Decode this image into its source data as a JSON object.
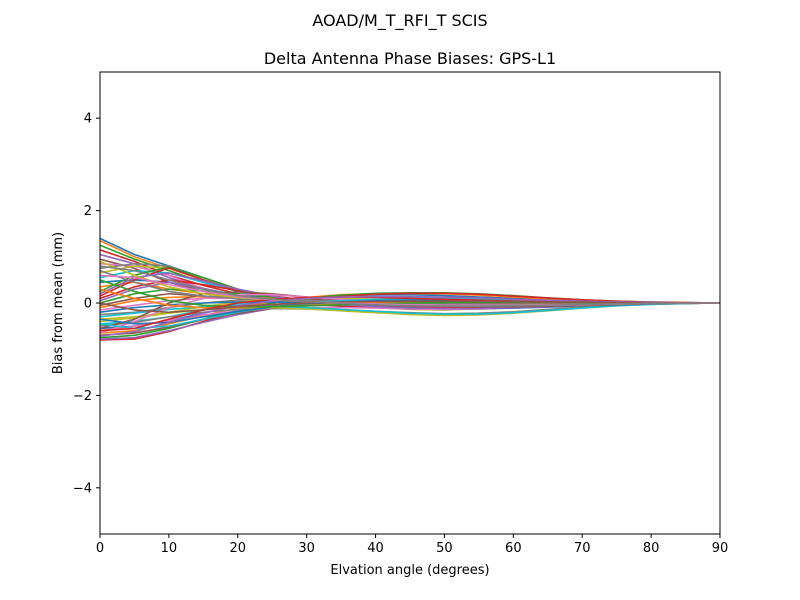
{
  "figure": {
    "suptitle": "AOAD/M_T_RFI_T  SCIS"
  },
  "chart_data": {
    "type": "line",
    "title": "Delta Antenna Phase Biases: GPS-L1",
    "xlabel": "Elvation angle (degrees)",
    "ylabel": "Bias from mean (mm)",
    "xlim": [
      0,
      90
    ],
    "ylim": [
      -5,
      5
    ],
    "xticks": [
      0,
      10,
      20,
      30,
      40,
      50,
      60,
      70,
      80,
      90
    ],
    "yticks": [
      -4,
      -2,
      0,
      2,
      4
    ],
    "xtick_labels": [
      "0",
      "10",
      "20",
      "30",
      "40",
      "50",
      "60",
      "70",
      "80",
      "90"
    ],
    "ytick_labels": [
      "−4",
      "−2",
      "0",
      "2",
      "4"
    ],
    "grid": false,
    "legend": "none",
    "palette": [
      "#1f77b4",
      "#ff7f0e",
      "#2ca02c",
      "#d62728",
      "#9467bd",
      "#8c564b",
      "#e377c2",
      "#7f7f7f",
      "#bcbd22",
      "#17becf"
    ],
    "x": [
      0,
      5,
      10,
      15,
      20,
      25,
      30,
      35,
      40,
      45,
      50,
      55,
      60,
      65,
      70,
      75,
      80,
      85,
      90
    ],
    "series": [
      {
        "values": [
          1.4,
          1.05,
          0.8,
          0.55,
          0.3,
          0.15,
          0.05,
          0.0,
          -0.05,
          -0.08,
          -0.08,
          -0.07,
          -0.05,
          -0.04,
          -0.03,
          -0.02,
          -0.01,
          0.0,
          0.0
        ]
      },
      {
        "values": [
          1.35,
          1.0,
          0.75,
          0.5,
          0.28,
          0.12,
          0.04,
          -0.02,
          -0.06,
          -0.09,
          -0.1,
          -0.08,
          -0.06,
          -0.04,
          -0.03,
          -0.02,
          -0.01,
          -0.01,
          0.0
        ]
      },
      {
        "values": [
          1.25,
          0.95,
          0.7,
          0.45,
          0.25,
          0.1,
          0.02,
          -0.04,
          -0.08,
          -0.1,
          -0.1,
          -0.09,
          -0.07,
          -0.05,
          -0.03,
          -0.02,
          -0.01,
          0.0,
          0.0
        ]
      },
      {
        "values": [
          1.15,
          0.9,
          0.6,
          0.38,
          0.2,
          0.08,
          0.0,
          -0.05,
          -0.08,
          -0.1,
          -0.1,
          -0.08,
          -0.06,
          -0.04,
          -0.02,
          -0.01,
          0.0,
          0.0,
          0.0
        ]
      },
      {
        "values": [
          1.05,
          0.85,
          0.55,
          0.32,
          0.16,
          0.05,
          -0.02,
          -0.06,
          -0.09,
          -0.11,
          -0.11,
          -0.09,
          -0.07,
          -0.05,
          -0.03,
          -0.02,
          -0.01,
          0.0,
          0.0
        ]
      },
      {
        "values": [
          0.95,
          0.75,
          0.45,
          0.25,
          0.12,
          0.03,
          -0.03,
          -0.07,
          -0.1,
          -0.12,
          -0.12,
          -0.1,
          -0.08,
          -0.06,
          -0.04,
          -0.02,
          -0.01,
          0.0,
          0.0
        ]
      },
      {
        "values": [
          0.85,
          0.8,
          0.6,
          0.3,
          0.1,
          0.02,
          -0.02,
          -0.05,
          -0.07,
          -0.08,
          -0.08,
          -0.07,
          -0.05,
          -0.04,
          -0.02,
          -0.01,
          0.0,
          0.0,
          0.0
        ]
      },
      {
        "values": [
          0.75,
          0.85,
          0.8,
          0.5,
          0.25,
          0.1,
          0.0,
          -0.06,
          -0.1,
          -0.13,
          -0.14,
          -0.12,
          -0.09,
          -0.06,
          -0.04,
          -0.02,
          -0.01,
          0.0,
          0.0
        ]
      },
      {
        "values": [
          0.65,
          0.8,
          0.75,
          0.55,
          0.3,
          0.12,
          0.02,
          -0.05,
          -0.1,
          -0.14,
          -0.15,
          -0.13,
          -0.1,
          -0.07,
          -0.04,
          -0.02,
          -0.01,
          0.0,
          0.0
        ]
      },
      {
        "values": [
          0.55,
          0.7,
          0.65,
          0.45,
          0.25,
          0.12,
          0.04,
          -0.02,
          -0.06,
          -0.09,
          -0.1,
          -0.09,
          -0.07,
          -0.05,
          -0.03,
          -0.02,
          -0.01,
          0.0,
          0.0
        ]
      },
      {
        "values": [
          0.45,
          0.5,
          0.45,
          0.3,
          0.18,
          0.08,
          0.02,
          -0.03,
          -0.06,
          -0.08,
          -0.09,
          -0.08,
          -0.06,
          -0.04,
          -0.03,
          -0.02,
          -0.01,
          0.0,
          0.0
        ]
      },
      {
        "values": [
          0.35,
          0.45,
          0.3,
          0.2,
          0.12,
          0.06,
          0.02,
          -0.02,
          -0.04,
          -0.06,
          -0.07,
          -0.06,
          -0.05,
          -0.03,
          -0.02,
          -0.01,
          0.0,
          0.0,
          0.0
        ]
      },
      {
        "values": [
          0.25,
          0.6,
          0.78,
          0.55,
          0.3,
          0.12,
          0.02,
          -0.05,
          -0.1,
          -0.13,
          -0.14,
          -0.12,
          -0.1,
          -0.07,
          -0.04,
          -0.02,
          -0.01,
          0.0,
          0.0
        ]
      },
      {
        "values": [
          0.15,
          0.5,
          0.76,
          0.5,
          0.28,
          0.1,
          0.0,
          -0.06,
          -0.1,
          -0.12,
          -0.13,
          -0.11,
          -0.09,
          -0.06,
          -0.04,
          -0.02,
          -0.01,
          0.0,
          0.0
        ]
      },
      {
        "values": [
          0.05,
          0.3,
          0.45,
          0.3,
          0.15,
          0.05,
          -0.01,
          -0.04,
          -0.06,
          -0.07,
          -0.07,
          -0.06,
          -0.05,
          -0.03,
          -0.02,
          -0.01,
          0.0,
          0.0,
          0.0
        ]
      },
      {
        "values": [
          -0.05,
          0.1,
          0.2,
          0.15,
          0.1,
          0.05,
          0.02,
          0.0,
          -0.02,
          -0.03,
          -0.04,
          -0.04,
          -0.03,
          -0.02,
          -0.02,
          -0.01,
          0.0,
          0.0,
          0.0
        ]
      },
      {
        "values": [
          -0.15,
          -0.05,
          0.05,
          0.1,
          0.1,
          0.08,
          0.05,
          0.02,
          0.0,
          -0.02,
          -0.03,
          -0.03,
          -0.03,
          -0.02,
          -0.01,
          -0.01,
          0.0,
          0.0,
          0.0
        ]
      },
      {
        "values": [
          -0.25,
          -0.2,
          -0.1,
          0.0,
          0.06,
          0.08,
          0.07,
          0.05,
          0.03,
          0.01,
          -0.01,
          -0.02,
          -0.02,
          -0.02,
          -0.01,
          -0.01,
          0.0,
          0.0,
          0.0
        ]
      },
      {
        "values": [
          -0.35,
          -0.3,
          -0.2,
          -0.08,
          0.02,
          0.08,
          0.1,
          0.1,
          0.08,
          0.06,
          0.04,
          0.02,
          0.01,
          0.0,
          0.0,
          0.0,
          0.0,
          0.0,
          0.0
        ]
      },
      {
        "values": [
          -0.45,
          -0.4,
          -0.3,
          -0.15,
          -0.02,
          0.07,
          0.12,
          0.14,
          0.14,
          0.12,
          0.1,
          0.07,
          0.05,
          0.03,
          0.02,
          0.01,
          0.0,
          0.0,
          0.0
        ]
      },
      {
        "values": [
          -0.55,
          -0.5,
          -0.38,
          -0.22,
          -0.06,
          0.05,
          0.12,
          0.16,
          0.18,
          0.18,
          0.16,
          0.13,
          0.1,
          0.07,
          0.04,
          0.02,
          0.01,
          0.0,
          0.0
        ]
      },
      {
        "values": [
          -0.65,
          -0.6,
          -0.45,
          -0.28,
          -0.1,
          0.03,
          0.12,
          0.18,
          0.2,
          0.21,
          0.2,
          0.17,
          0.13,
          0.09,
          0.06,
          0.03,
          0.01,
          0.0,
          0.0
        ]
      },
      {
        "values": [
          -0.75,
          -0.7,
          -0.55,
          -0.35,
          -0.15,
          0.0,
          0.1,
          0.17,
          0.21,
          0.22,
          0.22,
          0.2,
          0.16,
          0.11,
          0.07,
          0.04,
          0.02,
          0.01,
          0.0
        ]
      },
      {
        "values": [
          -0.8,
          -0.78,
          -0.62,
          -0.4,
          -0.2,
          -0.05,
          0.06,
          0.14,
          0.19,
          0.21,
          0.21,
          0.19,
          0.15,
          0.11,
          0.07,
          0.04,
          0.02,
          0.01,
          0.0
        ]
      },
      {
        "values": [
          -0.78,
          -0.75,
          -0.6,
          -0.42,
          -0.25,
          -0.12,
          -0.03,
          0.03,
          0.07,
          0.09,
          0.1,
          0.09,
          0.07,
          0.05,
          0.03,
          0.02,
          0.01,
          0.0,
          0.0
        ]
      },
      {
        "values": [
          -0.7,
          -0.65,
          -0.52,
          -0.36,
          -0.22,
          -0.12,
          -0.06,
          -0.03,
          -0.01,
          0.0,
          0.01,
          0.01,
          0.01,
          0.01,
          0.0,
          0.0,
          0.0,
          0.0,
          0.0
        ]
      },
      {
        "values": [
          -0.6,
          -0.5,
          -0.38,
          -0.26,
          -0.17,
          -0.12,
          -0.1,
          -0.1,
          -0.11,
          -0.13,
          -0.14,
          -0.13,
          -0.11,
          -0.08,
          -0.05,
          -0.03,
          -0.01,
          0.0,
          0.0
        ]
      },
      {
        "values": [
          -0.5,
          -0.42,
          -0.3,
          -0.2,
          -0.14,
          -0.12,
          -0.13,
          -0.15,
          -0.18,
          -0.21,
          -0.23,
          -0.22,
          -0.19,
          -0.14,
          -0.09,
          -0.05,
          -0.02,
          -0.01,
          0.0
        ]
      },
      {
        "values": [
          -0.4,
          -0.32,
          -0.22,
          -0.14,
          -0.1,
          -0.1,
          -0.13,
          -0.17,
          -0.21,
          -0.25,
          -0.27,
          -0.26,
          -0.22,
          -0.17,
          -0.11,
          -0.06,
          -0.03,
          -0.01,
          0.0
        ]
      },
      {
        "values": [
          -0.3,
          -0.22,
          -0.14,
          -0.08,
          -0.06,
          -0.07,
          -0.1,
          -0.14,
          -0.18,
          -0.22,
          -0.24,
          -0.24,
          -0.21,
          -0.16,
          -0.11,
          -0.06,
          -0.03,
          -0.01,
          0.0
        ]
      },
      {
        "values": [
          -0.2,
          -0.1,
          -0.04,
          0.0,
          0.02,
          0.02,
          0.0,
          -0.03,
          -0.06,
          -0.09,
          -0.11,
          -0.12,
          -0.11,
          -0.09,
          -0.06,
          -0.04,
          -0.02,
          -0.01,
          0.0
        ]
      },
      {
        "values": [
          -0.1,
          0.05,
          0.12,
          0.14,
          0.13,
          0.1,
          0.06,
          0.02,
          -0.01,
          -0.04,
          -0.06,
          -0.07,
          -0.07,
          -0.06,
          -0.04,
          -0.03,
          -0.01,
          0.0,
          0.0
        ]
      },
      {
        "values": [
          0.0,
          0.2,
          0.3,
          0.26,
          0.2,
          0.13,
          0.07,
          0.02,
          -0.02,
          -0.05,
          -0.07,
          -0.08,
          -0.08,
          -0.07,
          -0.05,
          -0.03,
          -0.01,
          0.0,
          0.0
        ]
      },
      {
        "values": [
          0.1,
          0.35,
          0.5,
          0.4,
          0.27,
          0.15,
          0.06,
          0.0,
          -0.04,
          -0.07,
          -0.09,
          -0.1,
          -0.09,
          -0.07,
          -0.05,
          -0.03,
          -0.01,
          0.0,
          0.0
        ]
      },
      {
        "values": [
          0.2,
          0.55,
          0.65,
          0.48,
          0.3,
          0.15,
          0.04,
          -0.03,
          -0.08,
          -0.11,
          -0.12,
          -0.12,
          -0.1,
          -0.08,
          -0.05,
          -0.03,
          -0.01,
          0.0,
          0.0
        ]
      },
      {
        "values": [
          -0.55,
          -0.35,
          0.0,
          0.2,
          0.24,
          0.2,
          0.13,
          0.06,
          0.0,
          -0.04,
          -0.07,
          -0.08,
          -0.08,
          -0.07,
          -0.05,
          -0.03,
          -0.01,
          0.0,
          0.0
        ]
      },
      {
        "values": [
          -0.65,
          -0.4,
          -0.1,
          0.1,
          0.18,
          0.18,
          0.13,
          0.08,
          0.03,
          -0.01,
          -0.04,
          -0.05,
          -0.05,
          -0.05,
          -0.04,
          -0.02,
          -0.01,
          0.0,
          0.0
        ]
      },
      {
        "values": [
          0.7,
          0.45,
          0.25,
          0.15,
          0.1,
          0.08,
          0.06,
          0.04,
          0.02,
          0.0,
          -0.02,
          -0.03,
          -0.03,
          -0.03,
          -0.02,
          -0.01,
          -0.01,
          0.0,
          0.0
        ]
      },
      {
        "values": [
          0.9,
          0.6,
          0.35,
          0.2,
          0.12,
          0.07,
          0.03,
          0.0,
          -0.03,
          -0.05,
          -0.06,
          -0.06,
          -0.05,
          -0.04,
          -0.03,
          -0.02,
          -0.01,
          0.0,
          0.0
        ]
      },
      {
        "values": [
          -0.45,
          -0.55,
          -0.5,
          -0.35,
          -0.2,
          -0.08,
          0.0,
          0.05,
          0.08,
          0.09,
          0.09,
          0.08,
          0.06,
          0.04,
          0.03,
          0.02,
          0.01,
          0.0,
          0.0
        ]
      },
      {
        "values": [
          -0.35,
          -0.45,
          -0.42,
          -0.3,
          -0.18,
          -0.08,
          -0.02,
          0.02,
          0.05,
          0.06,
          0.06,
          0.05,
          0.04,
          0.03,
          0.02,
          0.01,
          0.0,
          0.0,
          0.0
        ]
      },
      {
        "values": [
          0.3,
          0.1,
          -0.05,
          -0.1,
          -0.1,
          -0.08,
          -0.05,
          -0.02,
          0.0,
          0.02,
          0.03,
          0.03,
          0.03,
          0.02,
          0.02,
          0.01,
          0.0,
          0.0,
          0.0
        ]
      },
      {
        "values": [
          0.5,
          0.25,
          0.05,
          -0.05,
          -0.08,
          -0.08,
          -0.06,
          -0.04,
          -0.02,
          0.0,
          0.01,
          0.02,
          0.02,
          0.02,
          0.01,
          0.01,
          0.0,
          0.0,
          0.0
        ]
      },
      {
        "values": [
          -0.6,
          -0.55,
          -0.35,
          -0.15,
          0.0,
          0.08,
          0.12,
          0.13,
          0.12,
          0.1,
          0.08,
          0.06,
          0.04,
          0.03,
          0.02,
          0.01,
          0.0,
          0.0,
          0.0
        ]
      },
      {
        "values": [
          -0.72,
          -0.62,
          -0.42,
          -0.22,
          -0.06,
          0.04,
          0.1,
          0.13,
          0.14,
          0.14,
          0.13,
          0.11,
          0.08,
          0.06,
          0.04,
          0.02,
          0.01,
          0.0,
          0.0
        ]
      },
      {
        "values": [
          0.0,
          -0.15,
          -0.2,
          -0.15,
          -0.08,
          -0.03,
          0.0,
          0.02,
          0.03,
          0.04,
          0.04,
          0.04,
          0.03,
          0.02,
          0.02,
          0.01,
          0.0,
          0.0,
          0.0
        ]
      },
      {
        "values": [
          0.6,
          0.55,
          0.4,
          0.25,
          0.14,
          0.07,
          0.03,
          0.0,
          -0.02,
          -0.04,
          -0.05,
          -0.05,
          -0.05,
          -0.04,
          -0.03,
          -0.02,
          -0.01,
          0.0,
          0.0
        ]
      },
      {
        "values": [
          0.8,
          0.7,
          0.5,
          0.3,
          0.16,
          0.08,
          0.03,
          -0.01,
          -0.04,
          -0.06,
          -0.07,
          -0.07,
          -0.06,
          -0.05,
          -0.03,
          -0.02,
          -0.01,
          0.0,
          0.0
        ]
      }
    ]
  }
}
